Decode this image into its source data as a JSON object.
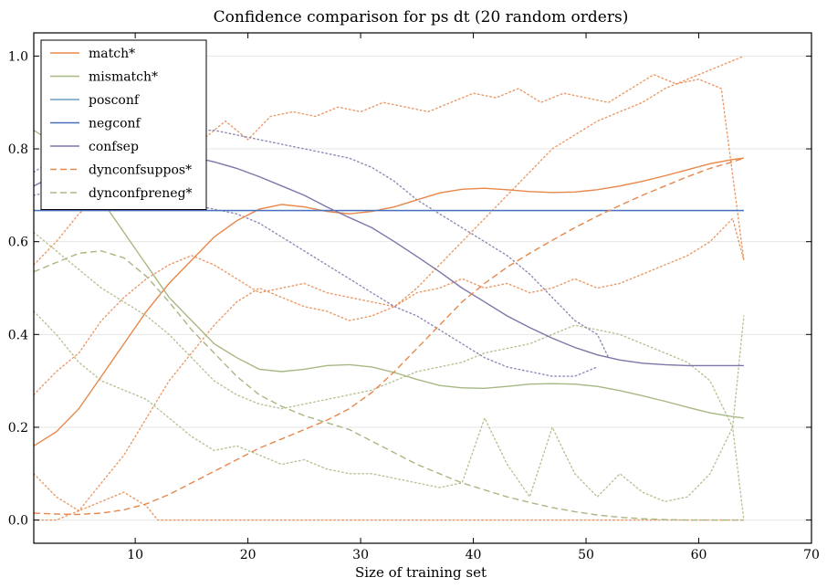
{
  "chart_data": {
    "type": "line",
    "title": "Confidence comparison for ps dt (20 random orders)",
    "xlabel": "Size of training set",
    "ylabel": "",
    "xlim": [
      1,
      70
    ],
    "ylim": [
      -0.05,
      1.05
    ],
    "xticks": [
      10,
      20,
      30,
      40,
      50,
      60,
      70
    ],
    "yticks": [
      0.0,
      0.2,
      0.4,
      0.6,
      0.8,
      1.0
    ],
    "grid": "horizontal",
    "legend_position": "top-left",
    "series": [
      {
        "name": "match*",
        "color": "#e8874a",
        "style": "solid",
        "x": [
          1,
          3,
          5,
          7,
          9,
          11,
          13,
          15,
          17,
          19,
          21,
          23,
          25,
          27,
          29,
          31,
          33,
          35,
          37,
          39,
          41,
          43,
          45,
          47,
          49,
          51,
          53,
          55,
          57,
          59,
          61,
          63,
          64
        ],
        "y": [
          0.16,
          0.19,
          0.24,
          0.31,
          0.38,
          0.45,
          0.51,
          0.56,
          0.61,
          0.645,
          0.67,
          0.68,
          0.675,
          0.665,
          0.66,
          0.665,
          0.675,
          0.69,
          0.705,
          0.713,
          0.715,
          0.712,
          0.708,
          0.706,
          0.707,
          0.712,
          0.72,
          0.73,
          0.742,
          0.755,
          0.768,
          0.777,
          0.78
        ]
      },
      {
        "name": "mismatch*",
        "color": "#a8b883",
        "style": "solid",
        "x": [
          1,
          3,
          5,
          7,
          9,
          11,
          13,
          15,
          17,
          19,
          21,
          23,
          25,
          27,
          29,
          31,
          33,
          35,
          37,
          39,
          41,
          43,
          45,
          47,
          49,
          51,
          53,
          55,
          57,
          59,
          61,
          63,
          64
        ],
        "y": [
          0.84,
          0.81,
          0.76,
          0.69,
          0.62,
          0.55,
          0.48,
          0.43,
          0.38,
          0.35,
          0.325,
          0.32,
          0.325,
          0.333,
          0.335,
          0.33,
          0.318,
          0.303,
          0.29,
          0.285,
          0.284,
          0.288,
          0.293,
          0.294,
          0.293,
          0.288,
          0.279,
          0.268,
          0.256,
          0.243,
          0.231,
          0.223,
          0.22
        ]
      },
      {
        "name": "posconf",
        "color": "#6f9ec0",
        "style": "solid",
        "x": [
          1,
          64
        ],
        "y": [
          0.667,
          0.667
        ]
      },
      {
        "name": "negconf",
        "color": "#4a6fc0",
        "style": "solid",
        "x": [
          1,
          64
        ],
        "y": [
          0.667,
          0.667
        ]
      },
      {
        "name": "confsep",
        "color": "#7d76a8",
        "style": "solid",
        "x": [
          1,
          3,
          5,
          7,
          9,
          11,
          13,
          15,
          17,
          19,
          21,
          23,
          25,
          27,
          29,
          31,
          33,
          35,
          37,
          39,
          41,
          43,
          45,
          47,
          49,
          51,
          53,
          55,
          57,
          59,
          61,
          63,
          64
        ],
        "y": [
          0.72,
          0.745,
          0.765,
          0.78,
          0.79,
          0.792,
          0.79,
          0.783,
          0.772,
          0.758,
          0.74,
          0.72,
          0.7,
          0.675,
          0.652,
          0.63,
          0.6,
          0.568,
          0.535,
          0.5,
          0.47,
          0.44,
          0.415,
          0.392,
          0.372,
          0.356,
          0.345,
          0.338,
          0.335,
          0.333,
          0.333,
          0.333,
          0.333
        ]
      },
      {
        "name": "dynconfsuppos*",
        "color": "#e8874a",
        "style": "dashed",
        "x": [
          1,
          3,
          5,
          7,
          9,
          11,
          13,
          15,
          17,
          19,
          21,
          23,
          25,
          27,
          29,
          31,
          33,
          35,
          37,
          39,
          41,
          43,
          45,
          47,
          49,
          51,
          53,
          55,
          57,
          59,
          61,
          63,
          64
        ],
        "y": [
          0.015,
          0.013,
          0.012,
          0.015,
          0.022,
          0.035,
          0.055,
          0.08,
          0.105,
          0.13,
          0.155,
          0.175,
          0.195,
          0.215,
          0.24,
          0.275,
          0.32,
          0.37,
          0.42,
          0.47,
          0.51,
          0.545,
          0.575,
          0.603,
          0.63,
          0.655,
          0.678,
          0.7,
          0.72,
          0.74,
          0.758,
          0.772,
          0.78
        ]
      },
      {
        "name": "dynconfpreneg*",
        "color": "#a8b883",
        "style": "dashed",
        "x": [
          1,
          3,
          5,
          7,
          9,
          11,
          13,
          15,
          17,
          19,
          21,
          23,
          25,
          27,
          29,
          31,
          33,
          35,
          37,
          39,
          41,
          43,
          45,
          47,
          49,
          51,
          53,
          55,
          57,
          59,
          61,
          63,
          64
        ],
        "y": [
          0.535,
          0.555,
          0.575,
          0.58,
          0.565,
          0.525,
          0.47,
          0.41,
          0.36,
          0.31,
          0.27,
          0.245,
          0.225,
          0.21,
          0.195,
          0.17,
          0.145,
          0.12,
          0.1,
          0.08,
          0.065,
          0.05,
          0.038,
          0.027,
          0.018,
          0.011,
          0.006,
          0.003,
          0.001,
          0.0,
          0.0,
          0.0,
          0.0
        ]
      }
    ],
    "background_traces": [
      {
        "color": "#e8874a",
        "x": [
          1,
          3,
          5,
          7,
          9,
          11,
          13,
          15,
          17,
          18,
          20,
          22,
          24,
          26,
          28,
          30,
          32,
          34,
          36,
          38,
          40,
          42,
          44,
          46,
          48,
          50,
          52,
          54,
          56,
          58,
          60,
          62,
          64
        ],
        "y": [
          0.55,
          0.6,
          0.66,
          0.7,
          0.72,
          0.74,
          0.77,
          0.8,
          0.84,
          0.86,
          0.82,
          0.87,
          0.88,
          0.87,
          0.89,
          0.88,
          0.9,
          0.89,
          0.88,
          0.9,
          0.92,
          0.91,
          0.93,
          0.9,
          0.92,
          0.91,
          0.9,
          0.93,
          0.96,
          0.94,
          0.95,
          0.93,
          0.56
        ]
      },
      {
        "color": "#e8874a",
        "x": [
          1,
          3,
          5,
          7,
          9,
          11,
          13,
          15,
          17,
          19,
          21,
          23,
          25,
          27,
          29,
          31,
          33,
          35,
          37,
          39,
          41,
          43,
          45,
          47,
          49,
          51,
          53,
          55,
          57,
          59,
          61,
          63,
          64
        ],
        "y": [
          0.1,
          0.05,
          0.02,
          0.08,
          0.14,
          0.22,
          0.3,
          0.36,
          0.42,
          0.47,
          0.5,
          0.48,
          0.46,
          0.45,
          0.43,
          0.44,
          0.46,
          0.5,
          0.55,
          0.6,
          0.65,
          0.7,
          0.75,
          0.8,
          0.83,
          0.86,
          0.88,
          0.9,
          0.93,
          0.95,
          0.97,
          0.99,
          1.0
        ]
      },
      {
        "color": "#e8874a",
        "x": [
          1,
          3,
          5,
          7,
          9,
          11,
          13,
          15,
          17,
          19,
          21,
          23,
          25,
          27,
          29,
          31,
          33,
          35,
          37,
          39,
          41,
          43,
          45,
          47,
          49,
          51,
          53,
          55,
          57,
          59,
          61,
          63,
          64
        ],
        "y": [
          0.27,
          0.32,
          0.36,
          0.43,
          0.48,
          0.52,
          0.55,
          0.57,
          0.55,
          0.52,
          0.49,
          0.5,
          0.51,
          0.49,
          0.48,
          0.47,
          0.46,
          0.49,
          0.5,
          0.52,
          0.5,
          0.51,
          0.49,
          0.5,
          0.52,
          0.5,
          0.51,
          0.53,
          0.55,
          0.57,
          0.6,
          0.65,
          0.56
        ]
      },
      {
        "color": "#e8874a",
        "x": [
          1,
          3,
          5,
          7,
          9,
          11,
          12,
          14,
          16,
          18,
          20,
          22,
          24,
          26,
          28,
          30,
          32,
          34,
          36,
          38,
          40,
          42,
          44,
          46,
          48,
          50,
          52,
          54,
          56,
          58,
          60,
          62,
          64
        ],
        "y": [
          0.0,
          0.0,
          0.02,
          0.04,
          0.06,
          0.03,
          0.0,
          0.0,
          0.0,
          0.0,
          0.0,
          0.0,
          0.0,
          0.0,
          0.0,
          0.0,
          0.0,
          0.0,
          0.0,
          0.0,
          0.0,
          0.0,
          0.0,
          0.0,
          0.0,
          0.0,
          0.0,
          0.0,
          0.0,
          0.0,
          0.0,
          0.0,
          0.0
        ]
      },
      {
        "color": "#a8b883",
        "x": [
          1,
          3,
          5,
          7,
          9,
          11,
          13,
          15,
          17,
          19,
          21,
          23,
          25,
          27,
          29,
          31,
          33,
          35,
          37,
          39,
          41,
          43,
          45,
          47,
          49,
          51,
          53,
          55,
          57,
          59,
          61,
          63,
          64
        ],
        "y": [
          0.45,
          0.4,
          0.34,
          0.3,
          0.28,
          0.26,
          0.22,
          0.18,
          0.15,
          0.16,
          0.14,
          0.12,
          0.13,
          0.11,
          0.1,
          0.1,
          0.09,
          0.08,
          0.07,
          0.08,
          0.22,
          0.12,
          0.05,
          0.2,
          0.1,
          0.05,
          0.1,
          0.06,
          0.04,
          0.05,
          0.1,
          0.2,
          0.44
        ]
      },
      {
        "color": "#a8b883",
        "x": [
          1,
          3,
          5,
          7,
          9,
          11,
          13,
          15,
          17,
          19,
          21,
          23,
          25,
          27,
          29,
          31,
          33,
          35,
          37,
          39,
          41,
          43,
          45,
          47,
          49,
          51,
          53,
          55,
          57,
          59,
          61,
          63,
          64
        ],
        "y": [
          0.62,
          0.58,
          0.54,
          0.5,
          0.47,
          0.44,
          0.4,
          0.35,
          0.3,
          0.27,
          0.25,
          0.24,
          0.25,
          0.26,
          0.27,
          0.28,
          0.3,
          0.32,
          0.33,
          0.34,
          0.36,
          0.37,
          0.38,
          0.4,
          0.42,
          0.41,
          0.4,
          0.38,
          0.36,
          0.34,
          0.3,
          0.2,
          0.0
        ]
      },
      {
        "color": "#7d76a8",
        "x": [
          1,
          3,
          5,
          7,
          9,
          11,
          13,
          15,
          17,
          19,
          21,
          23,
          25,
          27,
          29,
          31,
          33,
          35,
          37,
          39,
          41,
          43,
          45,
          47,
          49,
          51,
          52
        ],
        "y": [
          0.75,
          0.78,
          0.8,
          0.82,
          0.83,
          0.84,
          0.85,
          0.84,
          0.84,
          0.83,
          0.82,
          0.81,
          0.8,
          0.79,
          0.78,
          0.76,
          0.73,
          0.69,
          0.66,
          0.63,
          0.6,
          0.57,
          0.53,
          0.48,
          0.43,
          0.4,
          0.35
        ]
      },
      {
        "color": "#7d76a8",
        "x": [
          1,
          3,
          5,
          7,
          9,
          11,
          13,
          15,
          17,
          19,
          21,
          23,
          25,
          27,
          29,
          31,
          33,
          35,
          37,
          39,
          41,
          43,
          45,
          47,
          49,
          51
        ],
        "y": [
          0.7,
          0.71,
          0.72,
          0.72,
          0.71,
          0.7,
          0.69,
          0.68,
          0.67,
          0.66,
          0.64,
          0.61,
          0.58,
          0.55,
          0.52,
          0.49,
          0.46,
          0.44,
          0.41,
          0.38,
          0.35,
          0.33,
          0.32,
          0.31,
          0.31,
          0.33
        ]
      }
    ]
  }
}
